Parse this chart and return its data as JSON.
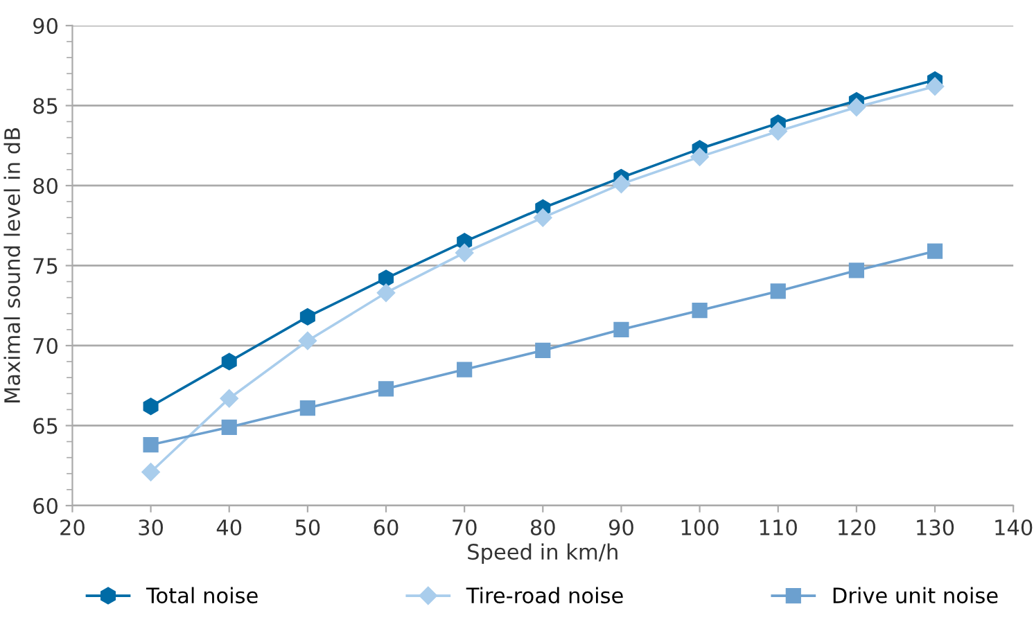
{
  "chart_data": {
    "type": "line",
    "xlabel": "Speed in km/h",
    "ylabel": "Maximal sound level in dB",
    "x": [
      30,
      40,
      50,
      60,
      70,
      80,
      90,
      100,
      110,
      120,
      130
    ],
    "series": [
      {
        "name": "Total noise",
        "color": "#006ba6",
        "marker": "circle",
        "values": [
          66.2,
          69.0,
          71.8,
          74.2,
          76.5,
          78.6,
          80.5,
          82.3,
          83.9,
          85.3,
          86.6
        ]
      },
      {
        "name": "Tire-road noise",
        "color": "#a9cdec",
        "marker": "diamond",
        "values": [
          62.1,
          66.7,
          70.3,
          73.3,
          75.8,
          78.0,
          80.1,
          81.8,
          83.4,
          84.9,
          86.2
        ]
      },
      {
        "name": "Drive unit noise",
        "color": "#6ca0cf",
        "marker": "square",
        "values": [
          63.8,
          64.9,
          66.1,
          67.3,
          68.5,
          69.7,
          71.0,
          72.2,
          73.4,
          74.7,
          75.9
        ]
      }
    ],
    "xlim": [
      20,
      140
    ],
    "xticks": [
      20,
      30,
      40,
      50,
      60,
      70,
      80,
      90,
      100,
      110,
      120,
      130,
      140
    ],
    "ylim": [
      60,
      90
    ],
    "yticks": [
      60,
      65,
      70,
      75,
      80,
      85,
      90
    ],
    "grid": "y",
    "legend": "bottom",
    "line_style": "solid"
  }
}
